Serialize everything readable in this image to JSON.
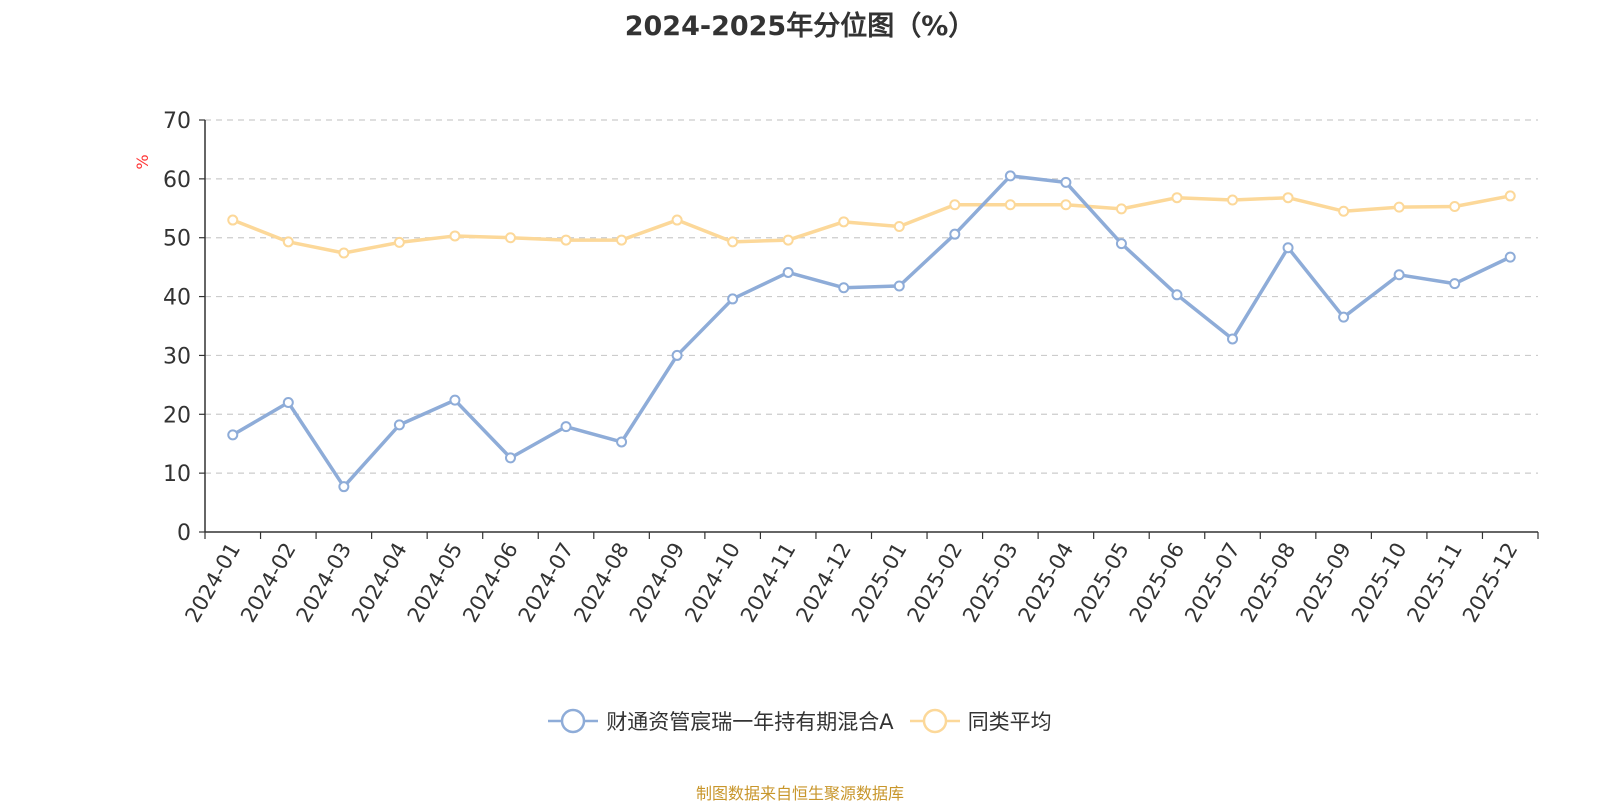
{
  "chart_data": {
    "type": "line",
    "title": "2024-2025年分位图（%）",
    "ylabel": "%",
    "ylim": [
      0,
      70
    ],
    "yticks": [
      0,
      10,
      20,
      30,
      40,
      50,
      60,
      70
    ],
    "grid": true,
    "legend_position": "bottom",
    "categories": [
      "2024-01",
      "2024-02",
      "2024-03",
      "2024-04",
      "2024-05",
      "2024-06",
      "2024-07",
      "2024-08",
      "2024-09",
      "2024-10",
      "2024-11",
      "2024-12",
      "2025-01",
      "2025-02",
      "2025-03",
      "2025-04",
      "2025-05",
      "2025-06",
      "2025-07",
      "2025-08",
      "2025-09",
      "2025-10",
      "2025-11",
      "2025-12"
    ],
    "series": [
      {
        "name": "财通资管宸瑞一年持有期混合A",
        "color": "#8eacd8",
        "values": [
          16.5,
          22.0,
          7.7,
          18.2,
          22.4,
          12.6,
          17.9,
          15.3,
          30.0,
          39.6,
          44.1,
          41.5,
          41.8,
          50.6,
          60.5,
          59.4,
          49.0,
          40.3,
          32.8,
          48.3,
          36.5,
          43.7,
          42.2,
          46.7
        ]
      },
      {
        "name": "同类平均",
        "color": "#fcd899",
        "values": [
          53.0,
          49.3,
          47.4,
          49.2,
          50.3,
          50.0,
          49.6,
          49.6,
          53.0,
          49.3,
          49.6,
          52.7,
          51.9,
          55.6,
          55.6,
          55.6,
          54.9,
          56.8,
          56.4,
          56.8,
          54.5,
          55.2,
          55.3,
          57.1
        ]
      }
    ]
  },
  "source_note": "制图数据来自恒生聚源数据库"
}
